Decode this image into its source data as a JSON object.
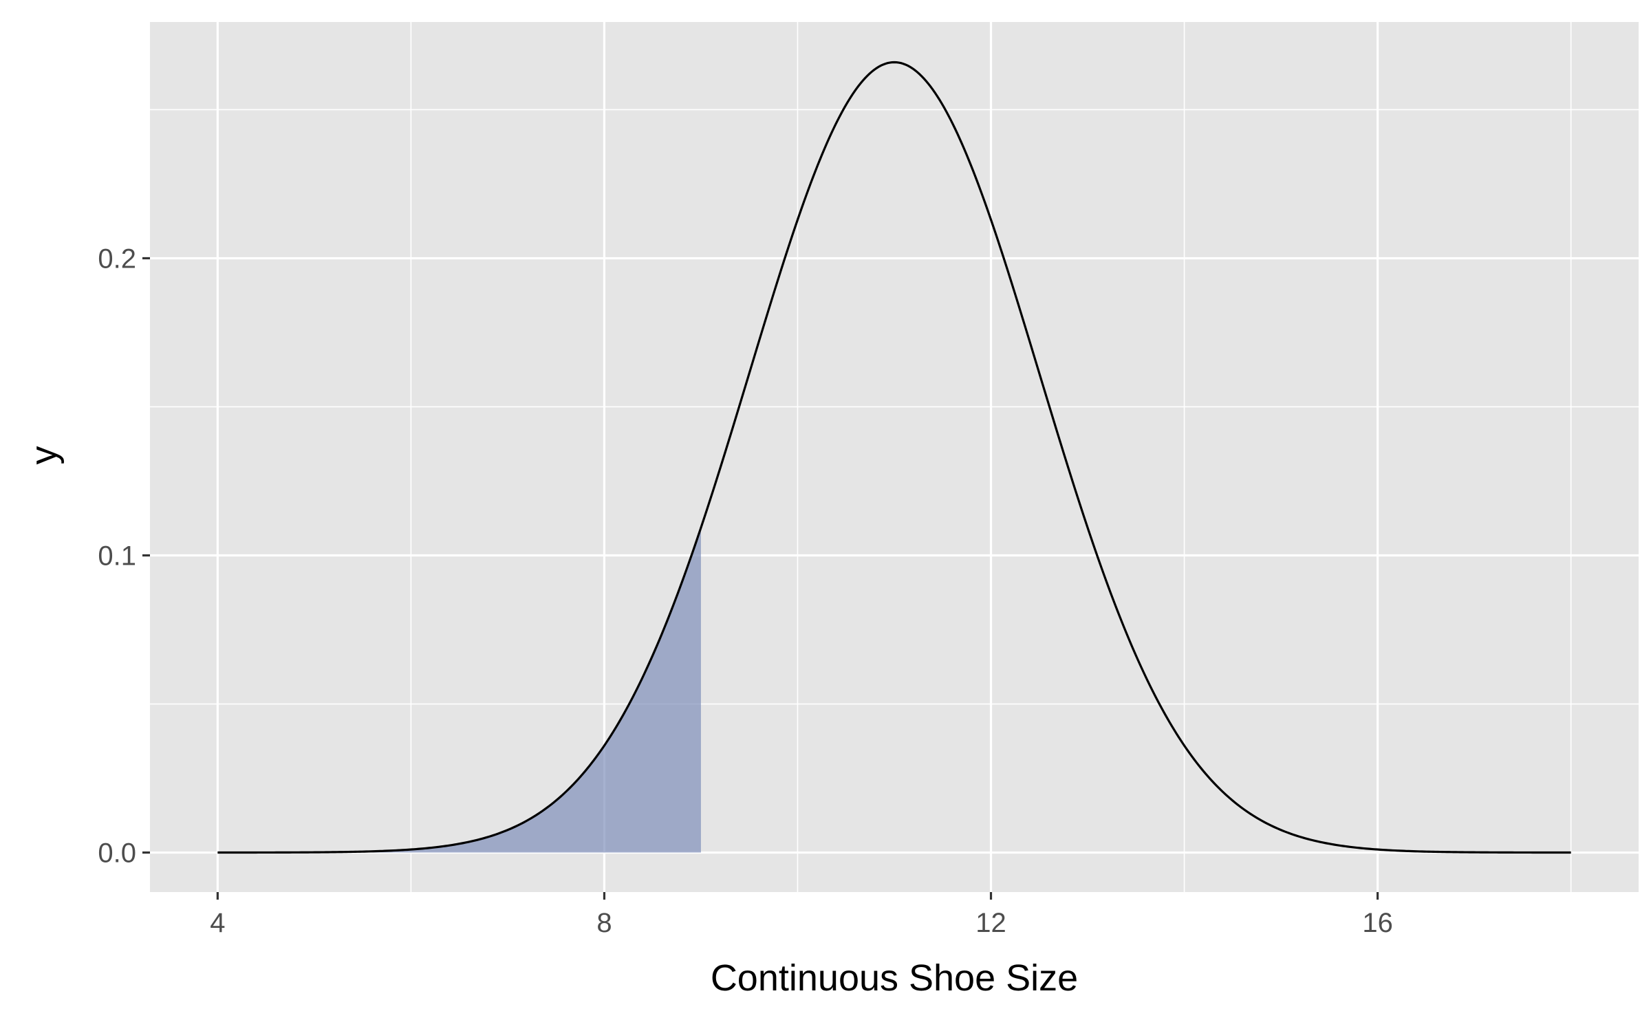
{
  "chart_data": {
    "type": "area",
    "title": "",
    "xlabel": "Continuous Shoe Size",
    "ylabel": "y",
    "xlim": [
      3.3,
      18.7
    ],
    "ylim": [
      -0.0133,
      0.2795
    ],
    "x_ticks": [
      4,
      8,
      12,
      16
    ],
    "x_tick_labels": [
      "4",
      "8",
      "12",
      "16"
    ],
    "y_ticks": [
      0.0,
      0.1,
      0.2
    ],
    "y_tick_labels": [
      "0.0",
      "0.1",
      "0.2"
    ],
    "x_minor_grid": [
      6,
      10,
      14,
      18
    ],
    "y_minor_grid": [
      0.05,
      0.15,
      0.25
    ],
    "grid": true,
    "series": [
      {
        "kind": "density-curve",
        "distribution": "normal",
        "mean": 11,
        "sd": 1.5,
        "x_range": [
          4,
          18
        ],
        "color": "#000000"
      },
      {
        "kind": "shaded-area",
        "x_range": [
          4,
          9
        ],
        "fill": "#8090bb",
        "opacity": 0.7
      }
    ],
    "colors": {
      "panel_background": "#e5e5e5",
      "grid": "#ffffff",
      "tick_text": "#4d4d4d",
      "tick_mark": "#333333",
      "curve": "#000000",
      "shade": "#8090bb"
    }
  }
}
